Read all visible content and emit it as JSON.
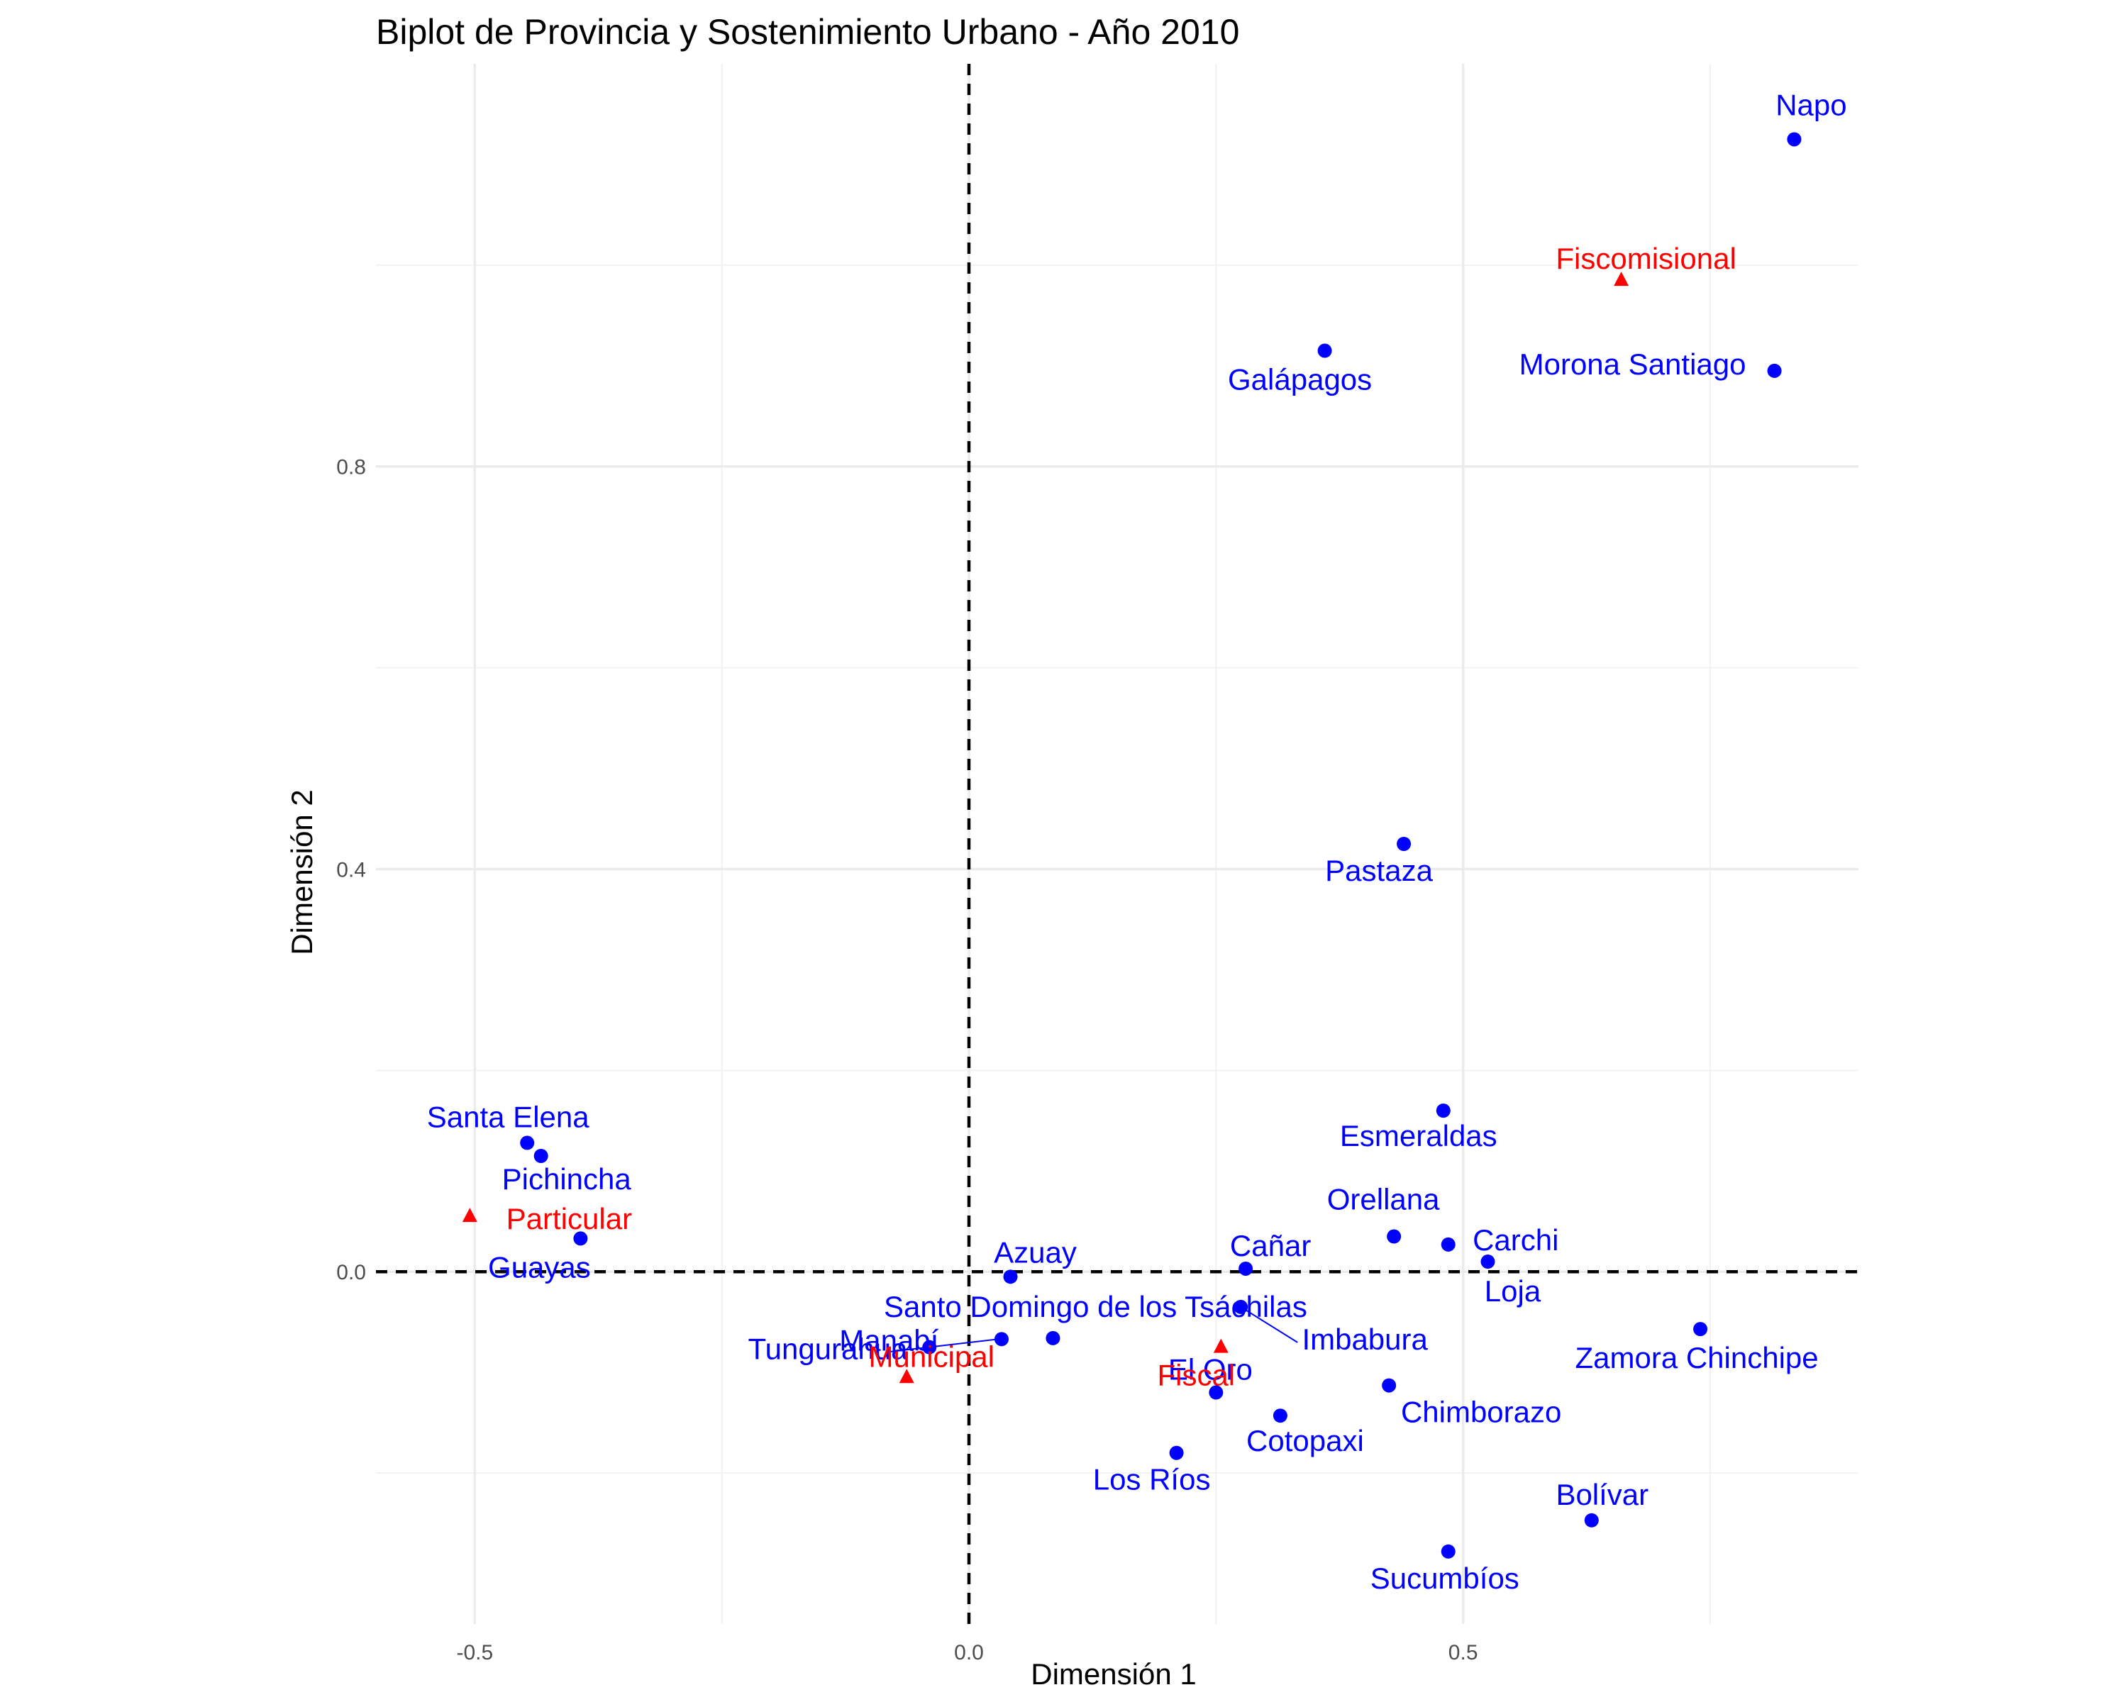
{
  "chart_data": {
    "type": "scatter",
    "title": "Biplot de Provincia y Sostenimiento Urbano - Año 2010",
    "xlabel": "Dimensión 1",
    "ylabel": "Dimensión 2",
    "xlim": [
      -0.6,
      0.9
    ],
    "ylim": [
      -0.35,
      1.2
    ],
    "x_ticks": [
      -0.5,
      0.0,
      0.5
    ],
    "x_tick_labels": [
      "-0.5",
      "0.0",
      "0.5"
    ],
    "y_ticks": [
      0.0,
      0.4,
      0.8
    ],
    "y_tick_labels": [
      "0.0",
      "0.4",
      "0.8"
    ],
    "grid": true,
    "reference_lines": {
      "x": 0,
      "y": 0,
      "style": "dashed"
    },
    "colors": {
      "provincia": "#0000ff",
      "sostenimiento": "#ff0000",
      "reference": "#000000"
    },
    "series": [
      {
        "marker": "circle",
        "color": "#0000ff",
        "points": [
          {
            "label": "Napo",
            "x": 0.835,
            "y": 1.125
          },
          {
            "label": "Morona Santiago",
            "x": 0.815,
            "y": 0.895
          },
          {
            "label": "Galápagos",
            "x": 0.36,
            "y": 0.915
          },
          {
            "label": "Pastaza",
            "x": 0.44,
            "y": 0.425
          },
          {
            "label": "Esmeraldas",
            "x": 0.48,
            "y": 0.16
          },
          {
            "label": "Orellana",
            "x": 0.43,
            "y": 0.035
          },
          {
            "label": "Carchi",
            "x": 0.485,
            "y": 0.027
          },
          {
            "label": "Loja",
            "x": 0.525,
            "y": 0.01
          },
          {
            "label": "Cañar",
            "x": 0.28,
            "y": 0.003
          },
          {
            "label": "Imbabura",
            "x": 0.275,
            "y": -0.035
          },
          {
            "label": "Zamora Chinchipe",
            "x": 0.74,
            "y": -0.057
          },
          {
            "label": "Chimborazo",
            "x": 0.425,
            "y": -0.113
          },
          {
            "label": "Cotopaxi",
            "x": 0.315,
            "y": -0.143
          },
          {
            "label": "El Oro",
            "x": 0.25,
            "y": -0.12
          },
          {
            "label": "Los Ríos",
            "x": 0.21,
            "y": -0.18
          },
          {
            "label": "Bolívar",
            "x": 0.63,
            "y": -0.247
          },
          {
            "label": "Sucumbíos",
            "x": 0.485,
            "y": -0.278
          },
          {
            "label": "Azuay",
            "x": 0.042,
            "y": -0.005
          },
          {
            "label": "Santo Domingo de los Tsáchilas",
            "x": 0.085,
            "y": -0.066
          },
          {
            "label": "Tungurahua",
            "x": 0.033,
            "y": -0.067
          },
          {
            "label": "Manabí",
            "x": -0.04,
            "y": -0.075
          },
          {
            "label": "Santa Elena",
            "x": -0.447,
            "y": 0.128
          },
          {
            "label": "Pichincha",
            "x": -0.433,
            "y": 0.115
          },
          {
            "label": "Guayas",
            "x": -0.393,
            "y": 0.033
          }
        ]
      },
      {
        "marker": "triangle",
        "color": "#ff0000",
        "points": [
          {
            "label": "Fiscomisional",
            "x": 0.66,
            "y": 0.985
          },
          {
            "label": "Particular",
            "x": -0.505,
            "y": 0.055
          },
          {
            "label": "Municipal",
            "x": -0.063,
            "y": -0.105
          },
          {
            "label": "Fiscal",
            "x": 0.255,
            "y": -0.075
          }
        ]
      }
    ]
  }
}
